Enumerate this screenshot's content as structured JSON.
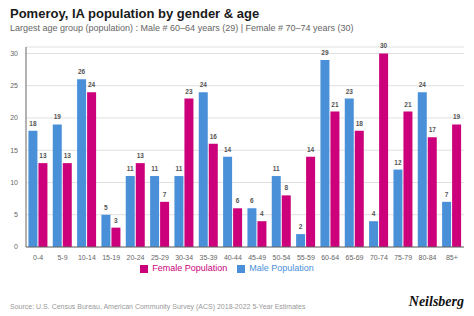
{
  "chart_data": {
    "type": "bar",
    "title": "Pomeroy, IA population by gender & age",
    "subtitle": "Largest age group (population) : Male # 60–64 years (29) | Female # 70–74 years (30)",
    "categories": [
      "0-4",
      "5-9",
      "10-14",
      "15-19",
      "20-24",
      "25-29",
      "30-34",
      "35-39",
      "40-44",
      "45-49",
      "50-54",
      "55-59",
      "60-64",
      "65-69",
      "70-74",
      "75-79",
      "80-84",
      "85+"
    ],
    "series": [
      {
        "name": "Male Population",
        "color": "#4a90d9",
        "values": [
          18,
          19,
          26,
          5,
          11,
          11,
          11,
          24,
          14,
          6,
          11,
          2,
          29,
          23,
          4,
          12,
          24,
          7
        ]
      },
      {
        "name": "Female Population",
        "color": "#cc007a",
        "values": [
          13,
          13,
          24,
          3,
          13,
          7,
          23,
          16,
          6,
          4,
          8,
          14,
          21,
          18,
          30,
          21,
          17,
          19
        ]
      }
    ],
    "ylim": [
      0,
      31
    ],
    "yticks": [
      0,
      5,
      10,
      15,
      20,
      25,
      30
    ],
    "grid": true,
    "legend": "bottom",
    "data_labels": true,
    "annotations": [
      "Source: U.S. Census Bureau, American Community Survey (ACS) 2018-2022 5-Year Estimates",
      "Neilsberg"
    ]
  }
}
